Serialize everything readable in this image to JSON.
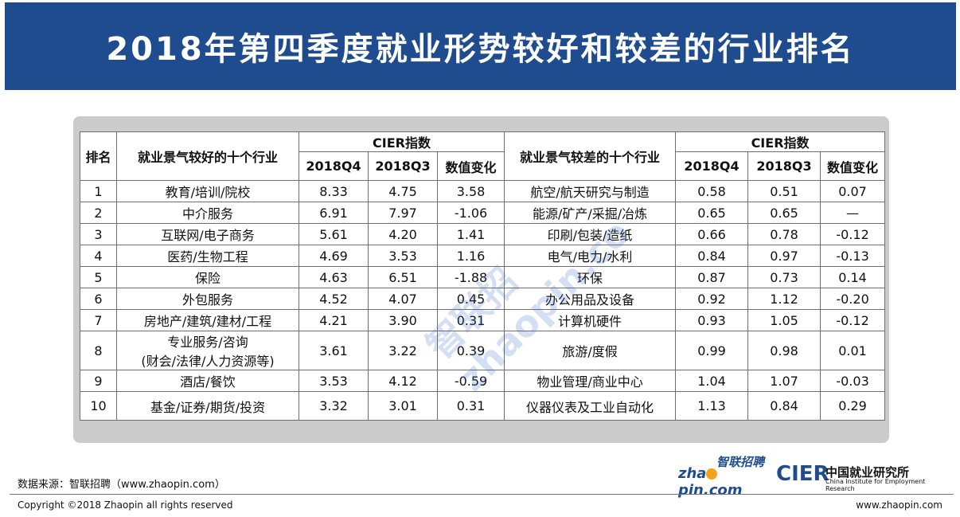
{
  "title": "2018年第四季度就业形势较好和较差的行业排名",
  "table": {
    "headers": {
      "rank": "排名",
      "good_industry": "就业景气较好的十个行业",
      "bad_industry": "就业景气较差的十个行业",
      "cier_good": "CIER指数",
      "cier_bad": "CIER指数",
      "q4_good": "2018Q4",
      "q3_good": "2018Q3",
      "change_good": "数值变化",
      "q4_bad": "2018Q4",
      "q3_bad": "2018Q3",
      "change_bad": "数值变化"
    },
    "rows": [
      {
        "rank": "1",
        "good": "教育/培训/院校",
        "g4": "8.33",
        "g3": "4.75",
        "gc": "3.58",
        "bad": "航空/航天研究与制造",
        "b4": "0.58",
        "b3": "0.51",
        "bc": "0.07"
      },
      {
        "rank": "2",
        "good": "中介服务",
        "g4": "6.91",
        "g3": "7.97",
        "gc": "-1.06",
        "bad": "能源/矿产/采掘/冶炼",
        "b4": "0.65",
        "b3": "0.65",
        "bc": "—"
      },
      {
        "rank": "3",
        "good": "互联网/电子商务",
        "g4": "5.61",
        "g3": "4.20",
        "gc": "1.41",
        "bad": "印刷/包装/造纸",
        "b4": "0.66",
        "b3": "0.78",
        "bc": "-0.12"
      },
      {
        "rank": "4",
        "good": "医药/生物工程",
        "g4": "4.69",
        "g3": "3.53",
        "gc": "1.16",
        "bad": "电气/电力/水利",
        "b4": "0.84",
        "b3": "0.97",
        "bc": "-0.13"
      },
      {
        "rank": "5",
        "good": "保险",
        "g4": "4.63",
        "g3": "6.51",
        "gc": "-1.88",
        "bad": "环保",
        "b4": "0.87",
        "b3": "0.73",
        "bc": "0.14"
      },
      {
        "rank": "6",
        "good": "外包服务",
        "g4": "4.52",
        "g3": "4.07",
        "gc": "0.45",
        "bad": "办公用品及设备",
        "b4": "0.92",
        "b3": "1.12",
        "bc": "-0.20"
      },
      {
        "rank": "7",
        "good": "房地产/建筑/建材/工程",
        "g4": "4.21",
        "g3": "3.90",
        "gc": "0.31",
        "bad": "计算机硬件",
        "b4": "0.93",
        "b3": "1.05",
        "bc": "-0.12"
      },
      {
        "rank": "8",
        "good": "专业服务/咨询",
        "good2": "(财会/法律/人力资源等)",
        "g4": "3.61",
        "g3": "3.22",
        "gc": "0.39",
        "bad": "旅游/度假",
        "b4": "0.99",
        "b3": "0.98",
        "bc": "0.01"
      },
      {
        "rank": "9",
        "good": "酒店/餐饮",
        "g4": "3.53",
        "g3": "4.12",
        "gc": "-0.59",
        "bad": "物业管理/商业中心",
        "b4": "1.04",
        "b3": "1.07",
        "bc": "-0.03"
      },
      {
        "rank": "10",
        "good": "基金/证券/期货/投资",
        "g4": "3.32",
        "g3": "3.01",
        "gc": "0.31",
        "bad": "仪器仪表及工业自动化",
        "b4": "1.13",
        "b3": "0.84",
        "bc": "0.29"
      }
    ]
  },
  "watermark": {
    "cn": "智联招",
    "en": "zhaopin.co"
  },
  "footer": {
    "source": "数据来源：智联招聘（www.zhaopin.com）",
    "copyright": "Copyright ©2018 Zhaopin all rights reserved",
    "url": "www.zhaopin.com"
  },
  "logos": {
    "zhaopin_cn": "智联招聘",
    "zhaopin_en_a": "zha",
    "zhaopin_en_b": "pin.com",
    "cier": "CIER",
    "cier_cn": "中国就业研究所",
    "cier_en": "China Institute for Employment Research"
  },
  "colors": {
    "banner": "#1f4c8f",
    "accent": "#f4a21c",
    "panel": "#cbcbcb"
  }
}
